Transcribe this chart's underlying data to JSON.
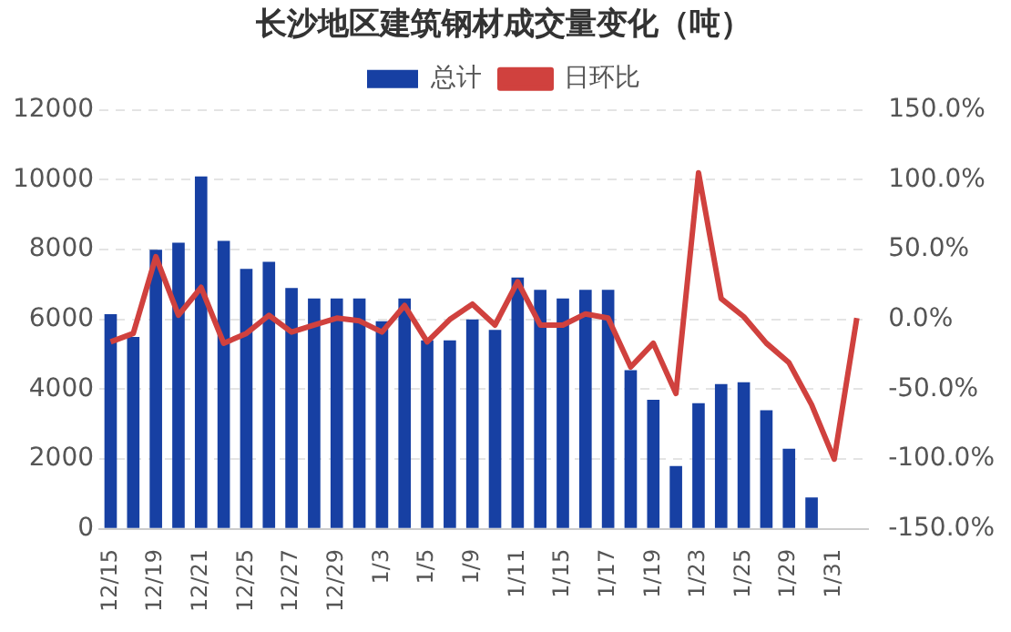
{
  "chart_data": {
    "type": "bar",
    "title": "长沙地区建筑钢材成交量变化（吨）",
    "categories": [
      "12/15",
      null,
      "12/19",
      null,
      "12/21",
      null,
      "12/25",
      null,
      "12/27",
      null,
      "12/29",
      null,
      "1/3",
      null,
      "1/5",
      null,
      "1/9",
      null,
      "1/11",
      null,
      "1/15",
      null,
      "1/17",
      null,
      "1/19",
      null,
      "1/23",
      null,
      "1/25",
      null,
      "1/29",
      null,
      "1/31",
      null
    ],
    "series": [
      {
        "name": "总计",
        "color": "#1740a3",
        "values": [
          6150,
          5500,
          8000,
          8200,
          10100,
          8250,
          7450,
          7650,
          6900,
          6600,
          6600,
          6600,
          5950,
          6600,
          5400,
          5400,
          6000,
          5700,
          7200,
          6850,
          6600,
          6850,
          6850,
          4550,
          3700,
          1800,
          3600,
          4150,
          4200,
          3400,
          2300,
          900,
          null,
          null
        ]
      },
      {
        "name": "日环比",
        "type": "line",
        "axis": "y2",
        "color": "#d0413e",
        "values": [
          -16,
          -10,
          45,
          3,
          23,
          -17,
          -10,
          3,
          -9,
          -4,
          1,
          -1,
          -9,
          10,
          -16,
          0,
          11,
          -4,
          27,
          -4,
          -4,
          4,
          1,
          -34,
          -17,
          -53,
          105,
          15,
          2,
          -17,
          -31,
          -61,
          -100,
          1
        ]
      }
    ],
    "ylim": [
      0,
      12000
    ],
    "yticks": [
      0,
      2000,
      4000,
      6000,
      8000,
      10000,
      12000
    ],
    "y2lim": [
      -150,
      150
    ],
    "y2ticks": [
      {
        "value": -150,
        "label": "-150.0%"
      },
      {
        "value": -100,
        "label": "-100.0%"
      },
      {
        "value": -50,
        "label": "-50.0%"
      },
      {
        "value": 0,
        "label": "0.0%"
      },
      {
        "value": 50,
        "label": "50.0%"
      },
      {
        "value": 100,
        "label": "100.0%"
      },
      {
        "value": 150,
        "label": "150.0%"
      }
    ],
    "grid": "y",
    "legend": "top"
  }
}
